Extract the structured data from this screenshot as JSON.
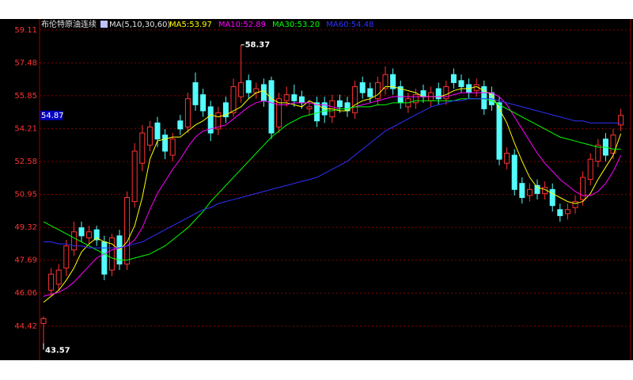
{
  "chart_data": {
    "type": "candlestick",
    "title": "布伦特原油连续",
    "indicator": "MA(5,10,30,60)",
    "ylim": [
      42.73,
      59.42
    ],
    "yticks": [
      59.11,
      57.48,
      55.85,
      54.21,
      52.58,
      50.95,
      49.32,
      47.69,
      46.06,
      44.42
    ],
    "grid": true,
    "up_color": "#ff3232",
    "down_color": "#54fcfc",
    "open": [
      44.55,
      46.2,
      46.5,
      47.3,
      48.2,
      49.3,
      48.8,
      49.2,
      48.6,
      47.2,
      48.9,
      47.5,
      50.6,
      52.5,
      53.4,
      54.5,
      53.9,
      52.9,
      54.6,
      54.3,
      56.5,
      55.9,
      55.3,
      54.2,
      55.5,
      55.0,
      55.8,
      56.6,
      56.0,
      56.4,
      56.6,
      54.3,
      55.6,
      55.9,
      55.8,
      55.2,
      55.5,
      55.5,
      54.8,
      55.6,
      55.5,
      55.0,
      56.5,
      56.2,
      55.7,
      56.2,
      56.9,
      56.3,
      55.3,
      55.5,
      56.1,
      55.6,
      56.2,
      55.7,
      56.9,
      56.6,
      56.4,
      56.1,
      56.3,
      56.0,
      55.5,
      52.5,
      52.9,
      51.5,
      50.9,
      51.4,
      51.0,
      51.2,
      50.2,
      50.0,
      50.3,
      50.7,
      51.7,
      52.6,
      53.7,
      53.0,
      54.4
    ],
    "high": [
      44.9,
      47.3,
      47.5,
      48.7,
      49.6,
      49.6,
      49.4,
      49.4,
      48.9,
      49.0,
      49.2,
      51.1,
      53.5,
      54.4,
      54.6,
      54.8,
      54.2,
      54.0,
      54.9,
      56.0,
      57.0,
      56.2,
      55.6,
      55.3,
      55.8,
      56.7,
      58.37,
      56.9,
      56.5,
      56.7,
      56.8,
      56.0,
      56.3,
      56.4,
      56.1,
      55.6,
      55.8,
      55.8,
      55.9,
      55.9,
      55.8,
      56.6,
      56.8,
      56.5,
      56.8,
      57.3,
      57.2,
      56.6,
      56.0,
      56.2,
      56.4,
      56.3,
      56.5,
      56.6,
      57.2,
      56.9,
      56.7,
      56.7,
      56.6,
      56.3,
      55.8,
      53.3,
      53.2,
      51.8,
      51.5,
      51.7,
      51.6,
      51.5,
      50.5,
      50.5,
      50.9,
      52.1,
      53.0,
      53.7,
      54.0,
      54.2,
      55.2
    ],
    "low": [
      43.57,
      45.9,
      46.2,
      46.9,
      47.9,
      48.6,
      48.5,
      48.4,
      46.7,
      46.9,
      47.2,
      47.2,
      50.3,
      52.1,
      53.1,
      53.3,
      52.7,
      52.6,
      53.9,
      54.0,
      55.1,
      54.8,
      53.6,
      53.9,
      54.5,
      54.8,
      55.5,
      55.7,
      55.7,
      55.3,
      53.7,
      54.0,
      55.3,
      55.3,
      55.2,
      54.9,
      54.3,
      54.5,
      54.5,
      55.0,
      54.8,
      54.7,
      55.7,
      55.5,
      55.4,
      55.9,
      55.9,
      55.2,
      55.0,
      55.2,
      55.5,
      55.3,
      55.4,
      55.4,
      56.2,
      56.0,
      55.7,
      55.8,
      54.9,
      55.1,
      52.4,
      52.2,
      50.9,
      50.5,
      50.6,
      50.7,
      50.7,
      50.1,
      49.6,
      49.7,
      50.0,
      50.4,
      51.4,
      52.3,
      52.6,
      52.7,
      54.1
    ],
    "close": [
      44.8,
      47.0,
      47.2,
      48.4,
      49.1,
      48.9,
      49.1,
      48.7,
      47.0,
      48.8,
      47.5,
      50.8,
      53.1,
      54.0,
      54.3,
      53.7,
      53.1,
      53.7,
      54.2,
      55.7,
      55.4,
      55.1,
      54.0,
      55.0,
      54.8,
      56.3,
      56.5,
      56.0,
      56.2,
      55.6,
      54.0,
      55.7,
      55.9,
      55.6,
      55.5,
      55.3,
      54.6,
      54.9,
      55.6,
      55.3,
      55.1,
      56.3,
      56.0,
      55.8,
      56.5,
      56.9,
      56.2,
      55.5,
      55.7,
      55.9,
      55.8,
      56.0,
      55.7,
      56.3,
      56.5,
      56.3,
      56.0,
      56.4,
      55.2,
      55.4,
      52.7,
      53.0,
      51.2,
      50.8,
      51.2,
      51.0,
      51.3,
      50.4,
      49.9,
      50.2,
      50.6,
      51.8,
      52.7,
      53.4,
      52.9,
      53.9,
      54.87
    ],
    "series": [
      {
        "name": "MA5:53.97",
        "color": "#ffff00",
        "values": [
          45.6,
          45.9,
          46.2,
          46.7,
          47.3,
          48.1,
          48.5,
          48.8,
          48.6,
          48.5,
          48.2,
          48.6,
          49.4,
          50.8,
          52.7,
          53.6,
          53.7,
          53.8,
          53.8,
          54.1,
          54.4,
          54.6,
          54.9,
          54.8,
          54.9,
          55.1,
          55.3,
          55.7,
          56.0,
          56.1,
          55.7,
          55.5,
          55.5,
          55.4,
          55.3,
          55.6,
          55.4,
          55.2,
          55.2,
          55.1,
          55.1,
          55.4,
          55.6,
          55.7,
          55.9,
          56.3,
          56.3,
          56.2,
          56.1,
          56.0,
          55.8,
          55.8,
          55.8,
          55.9,
          56.1,
          56.2,
          56.2,
          56.3,
          56.1,
          55.9,
          55.2,
          54.5,
          53.5,
          52.6,
          51.8,
          51.3,
          51.2,
          51.0,
          50.8,
          50.6,
          50.5,
          50.6,
          51.0,
          51.7,
          52.3,
          52.9,
          53.97
        ]
      },
      {
        "name": "MA10:52.89",
        "color": "#ff00ff",
        "values": [
          45.9,
          46.0,
          46.1,
          46.3,
          46.6,
          47.0,
          47.4,
          47.8,
          48.0,
          48.2,
          48.3,
          48.4,
          48.7,
          49.3,
          50.2,
          51.0,
          51.6,
          52.2,
          52.7,
          53.3,
          53.8,
          54.1,
          54.2,
          54.3,
          54.4,
          54.7,
          55.0,
          55.3,
          55.5,
          55.6,
          55.5,
          55.4,
          55.4,
          55.5,
          55.5,
          55.5,
          55.4,
          55.4,
          55.3,
          55.2,
          55.2,
          55.3,
          55.4,
          55.5,
          55.6,
          55.7,
          55.8,
          55.8,
          55.8,
          55.8,
          55.8,
          55.8,
          55.8,
          55.8,
          55.9,
          56.0,
          56.0,
          56.0,
          56.0,
          56.0,
          55.8,
          55.4,
          54.8,
          54.2,
          53.6,
          53.0,
          52.5,
          52.1,
          51.7,
          51.4,
          51.1,
          50.9,
          50.9,
          51.1,
          51.5,
          52.1,
          52.89
        ]
      },
      {
        "name": "MA30:53.20",
        "color": "#00ff00",
        "values": [
          49.6,
          49.4,
          49.2,
          49.0,
          48.8,
          48.6,
          48.4,
          48.2,
          48.0,
          47.8,
          47.7,
          47.7,
          47.8,
          47.9,
          48.0,
          48.2,
          48.4,
          48.7,
          49.0,
          49.3,
          49.7,
          50.1,
          50.6,
          51.0,
          51.4,
          51.8,
          52.2,
          52.6,
          53.0,
          53.4,
          53.8,
          54.1,
          54.4,
          54.6,
          54.8,
          54.9,
          55.0,
          55.1,
          55.1,
          55.2,
          55.2,
          55.3,
          55.3,
          55.3,
          55.4,
          55.4,
          55.5,
          55.5,
          55.5,
          55.6,
          55.6,
          55.6,
          55.6,
          55.6,
          55.6,
          55.7,
          55.7,
          55.7,
          55.7,
          55.6,
          55.4,
          55.2,
          55.0,
          54.8,
          54.6,
          54.4,
          54.2,
          54.0,
          53.8,
          53.7,
          53.6,
          53.5,
          53.4,
          53.3,
          53.3,
          53.2,
          53.2
        ]
      },
      {
        "name": "MA60:54.48",
        "color": "#3030ff",
        "values": [
          48.6,
          48.6,
          48.5,
          48.5,
          48.4,
          48.4,
          48.3,
          48.3,
          48.3,
          48.3,
          48.3,
          48.4,
          48.5,
          48.6,
          48.8,
          49.0,
          49.2,
          49.4,
          49.6,
          49.8,
          50.0,
          50.2,
          50.3,
          50.5,
          50.6,
          50.7,
          50.8,
          50.9,
          51.0,
          51.1,
          51.2,
          51.3,
          51.4,
          51.5,
          51.6,
          51.7,
          51.8,
          52.0,
          52.2,
          52.4,
          52.6,
          52.9,
          53.2,
          53.5,
          53.8,
          54.1,
          54.3,
          54.5,
          54.7,
          54.9,
          55.1,
          55.3,
          55.4,
          55.5,
          55.6,
          55.6,
          55.7,
          55.7,
          55.7,
          55.7,
          55.6,
          55.5,
          55.4,
          55.3,
          55.2,
          55.1,
          55.0,
          54.9,
          54.8,
          54.7,
          54.6,
          54.6,
          54.5,
          54.5,
          54.5,
          54.5,
          54.48
        ]
      }
    ]
  }
}
